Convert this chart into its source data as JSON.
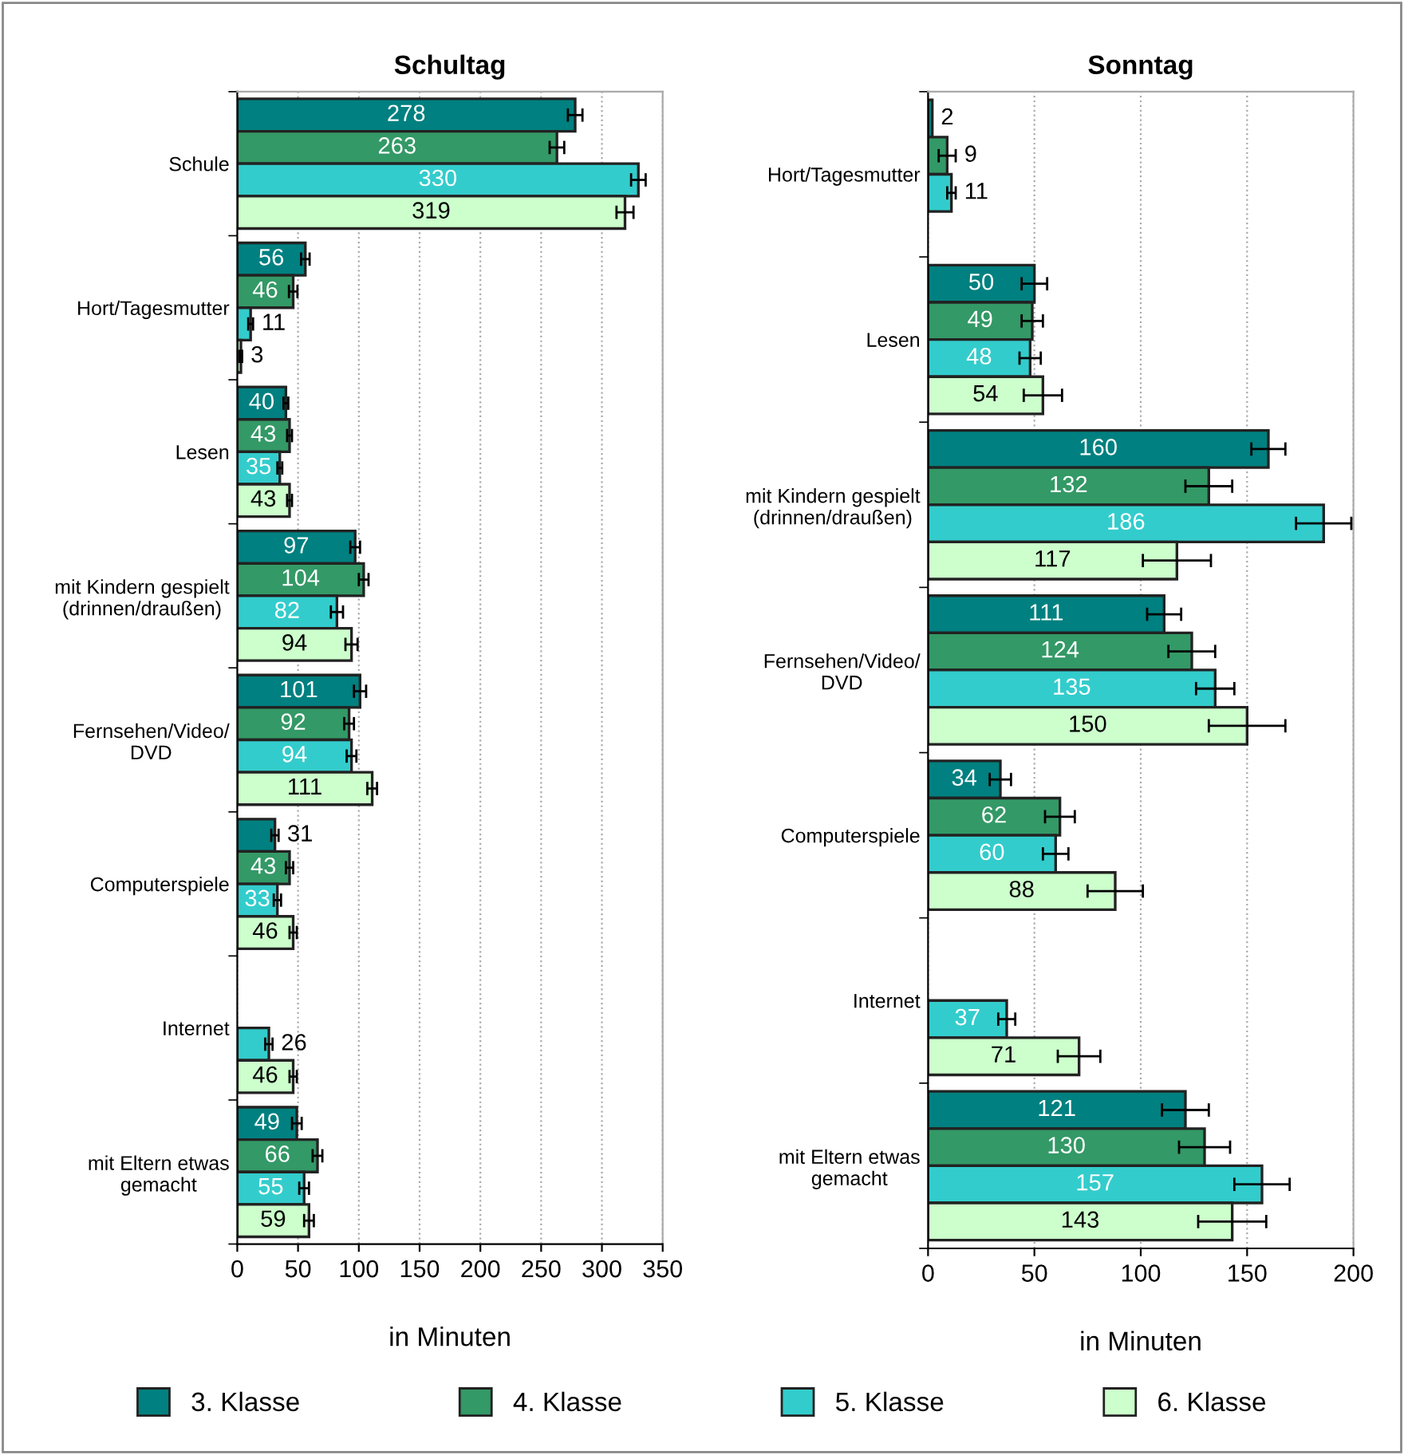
{
  "chart_data": [
    {
      "type": "bar",
      "orientation": "horizontal",
      "title": "Schultag",
      "xlabel": "in Minuten",
      "categories": [
        "Schule",
        "Hort/Tagesmutter",
        "Lesen",
        "mit Kindern gespielt\n(drinnen/draußen)",
        "Fernsehen/Video/\nDVD",
        "Computerspiele",
        "Internet",
        "mit Eltern etwas\ngemacht"
      ],
      "xlim": [
        0,
        350
      ],
      "xticks": [
        0,
        50,
        100,
        150,
        200,
        250,
        300,
        350
      ],
      "grid": "x",
      "data_labels": true,
      "legend": "bottom",
      "series": [
        {
          "name": "3. Klasse",
          "color": "#008080",
          "values": [
            278,
            56,
            40,
            97,
            101,
            31,
            null,
            49
          ],
          "errors": [
            6,
            3.5,
            2,
            4,
            5,
            3,
            null,
            4
          ]
        },
        {
          "name": "4. Klasse",
          "color": "#339966",
          "values": [
            263,
            46,
            43,
            104,
            92,
            43,
            null,
            66
          ],
          "errors": [
            6,
            3.5,
            2,
            4,
            4,
            3,
            null,
            4
          ]
        },
        {
          "name": "5. Klasse",
          "color": "#33cccc",
          "values": [
            330,
            11,
            35,
            82,
            94,
            33,
            26,
            55
          ],
          "errors": [
            6,
            2,
            2,
            5,
            4,
            3,
            3,
            4
          ]
        },
        {
          "name": "6. Klasse",
          "color": "#ccffcc",
          "values": [
            319,
            3,
            43,
            94,
            111,
            46,
            46,
            59
          ],
          "errors": [
            7,
            1,
            2,
            5,
            4,
            3,
            3,
            4
          ]
        }
      ]
    },
    {
      "type": "bar",
      "orientation": "horizontal",
      "title": "Sonntag",
      "xlabel": "in Minuten",
      "categories": [
        "Hort/Tagesmutter",
        "Lesen",
        "mit Kindern gespielt\n(drinnen/draußen)",
        "Fernsehen/Video/\nDVD",
        "Computerspiele",
        "Internet",
        "mit Eltern etwas\ngemacht"
      ],
      "xlim": [
        0,
        200
      ],
      "xticks": [
        0,
        50,
        100,
        150,
        200
      ],
      "grid": "x",
      "data_labels": true,
      "series": [
        {
          "color": "#008080",
          "values": [
            2,
            50,
            160,
            111,
            34,
            null,
            121
          ],
          "errors": [
            null,
            6,
            8,
            8,
            5,
            null,
            11
          ]
        },
        {
          "color": "#339966",
          "values": [
            9,
            49,
            132,
            124,
            62,
            null,
            130
          ],
          "errors": [
            4,
            5,
            11,
            11,
            7,
            null,
            12
          ]
        },
        {
          "color": "#33cccc",
          "values": [
            11,
            48,
            186,
            135,
            60,
            37,
            157
          ],
          "errors": [
            2,
            5,
            13,
            9,
            6,
            4,
            13
          ]
        },
        {
          "color": "#ccffcc",
          "values": [
            null,
            54,
            117,
            150,
            88,
            71,
            143
          ],
          "errors": [
            null,
            9,
            16,
            18,
            13,
            10,
            16
          ]
        }
      ]
    }
  ]
}
